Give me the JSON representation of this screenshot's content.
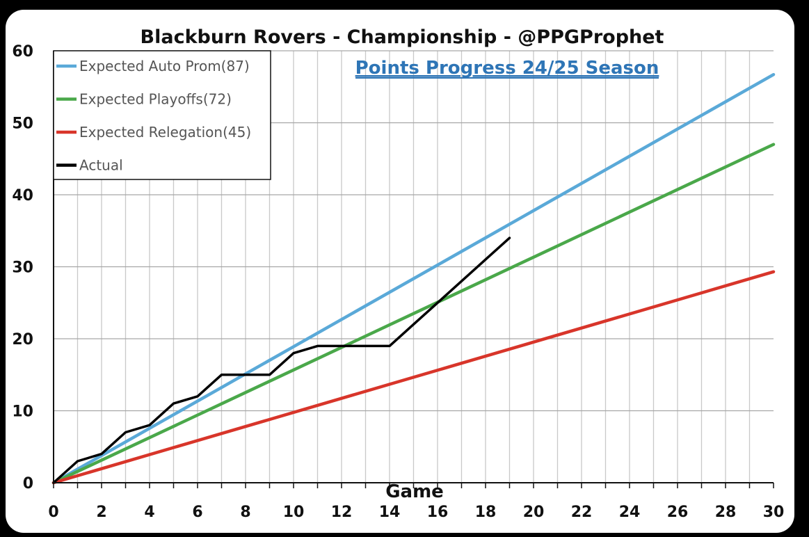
{
  "chart_data": {
    "type": "line",
    "title": "Blackburn Rovers - Championship - @PPGProphet",
    "subtitle": "Points Progress 24/25 Season",
    "xlabel": "Game",
    "ylabel": "",
    "xlim": [
      0,
      30
    ],
    "ylim": [
      0,
      60
    ],
    "xticks": [
      0,
      2,
      4,
      6,
      8,
      10,
      12,
      14,
      16,
      18,
      20,
      22,
      24,
      26,
      28,
      30
    ],
    "yticks": [
      0,
      10,
      20,
      30,
      40,
      50,
      60
    ],
    "grid": "vertical lines every game, horizontal lines every 10 points",
    "legend_position": "top-left",
    "series": [
      {
        "name": "Expected Auto Prom(87)",
        "color": "#5aa9d8",
        "x": [
          0,
          30
        ],
        "y": [
          0,
          56.7
        ]
      },
      {
        "name": "Expected Playoffs(72)",
        "color": "#4aa84a",
        "x": [
          0,
          30
        ],
        "y": [
          0,
          47.0
        ]
      },
      {
        "name": "Expected Relegation(45)",
        "color": "#d8352a",
        "x": [
          0,
          30
        ],
        "y": [
          0,
          29.3
        ]
      },
      {
        "name": "Actual",
        "color": "#000000",
        "x": [
          0,
          1,
          2,
          3,
          4,
          5,
          6,
          7,
          8,
          9,
          10,
          11,
          12,
          13,
          14,
          15,
          16,
          17,
          18,
          19
        ],
        "y": [
          0,
          3,
          4,
          7,
          8,
          11,
          12,
          15,
          15,
          15,
          18,
          19,
          19,
          19,
          19,
          22,
          25,
          28,
          31,
          34
        ]
      }
    ]
  }
}
